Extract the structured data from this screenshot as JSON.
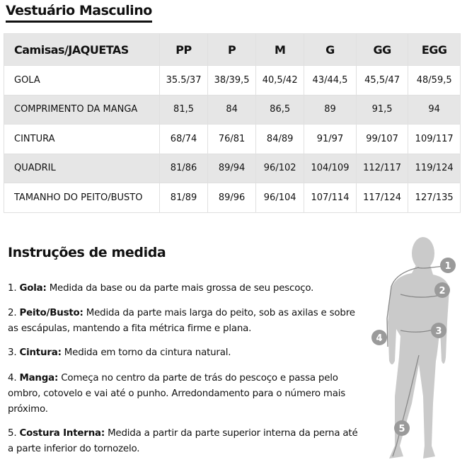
{
  "title": "Vestuário Masculino",
  "table": {
    "headers": [
      "Camisas/JAQUETAS",
      "PP",
      "P",
      "M",
      "G",
      "GG",
      "EGG"
    ],
    "rows": [
      [
        "GOLA",
        "35.5/37",
        "38/39,5",
        "40,5/42",
        "43/44,5",
        "45,5/47",
        "48/59,5"
      ],
      [
        "COMPRIMENTO DA MANGA",
        "81,5",
        "84",
        "86,5",
        "89",
        "91,5",
        "94"
      ],
      [
        "CINTURA",
        "68/74",
        "76/81",
        "84/89",
        "91/97",
        "99/107",
        "109/117"
      ],
      [
        "QUADRIL",
        "81/86",
        "89/94",
        "96/102",
        "104/109",
        "112/117",
        "119/124"
      ],
      [
        "TAMANHO DO PEITO/BUSTO",
        "81/89",
        "89/96",
        "96/104",
        "107/114",
        "117/124",
        "127/135"
      ]
    ]
  },
  "instructions": {
    "heading": "Instruções de medida",
    "items": [
      {
        "num": "1.",
        "term": "Gola:",
        "text": "Medida da base ou da parte mais grossa de seu pescoço."
      },
      {
        "num": "2.",
        "term": "Peito/Busto:",
        "text": "Medida da parte mais larga do peito, sob as axilas e sobre as escápulas, mantendo a fita métrica firme e plana."
      },
      {
        "num": "3.",
        "term": "Cintura:",
        "text": "Medida em torno da cintura natural."
      },
      {
        "num": "4.",
        "term": "Manga:",
        "text": "Começa no centro da parte de trás do pescoço e passa pelo ombro, cotovelo e vai até o punho. Arredondamento para o número mais próximo."
      },
      {
        "num": "5.",
        "term": "Costura Interna:",
        "text": "Medida a partir da parte superior interna da perna até a parte inferior do tornozelo."
      }
    ]
  },
  "figure": {
    "markers": [
      "1",
      "2",
      "3",
      "4",
      "5"
    ],
    "color": "#c8c8c8",
    "marker_color": "#9a9a9a"
  }
}
